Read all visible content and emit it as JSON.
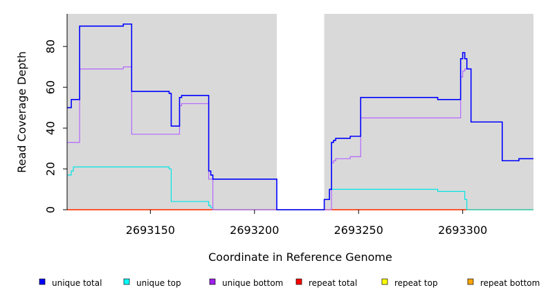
{
  "chart_data": {
    "type": "line",
    "xlabel": "Coordinate in Reference Genome",
    "ylabel": "Read Coverage Depth",
    "xlim": [
      2693110,
      2693334
    ],
    "ylim": [
      0,
      96
    ],
    "x_ticks": [
      {
        "value": 2693150,
        "label": "2693150"
      },
      {
        "value": 2693200,
        "label": "2693200"
      },
      {
        "value": 2693250,
        "label": "2693250"
      },
      {
        "value": 2693300,
        "label": "2693300"
      }
    ],
    "y_ticks": [
      {
        "value": 0,
        "label": "0"
      },
      {
        "value": 20,
        "label": "20"
      },
      {
        "value": 40,
        "label": "40"
      },
      {
        "value": 60,
        "label": "60"
      },
      {
        "value": 80,
        "label": "80"
      }
    ],
    "shaded_regions": [
      {
        "from": 2693110,
        "to": 2693210.7
      },
      {
        "from": 2693233.5,
        "to": 2693334
      }
    ],
    "series": [
      {
        "name": "unique total",
        "color": "#0000ff",
        "points": [
          [
            2693110,
            50
          ],
          [
            2693112,
            50
          ],
          [
            2693112,
            54
          ],
          [
            2693116,
            54
          ],
          [
            2693116,
            90
          ],
          [
            2693137,
            90
          ],
          [
            2693137,
            91
          ],
          [
            2693141,
            91
          ],
          [
            2693141,
            58
          ],
          [
            2693159,
            58
          ],
          [
            2693159,
            57
          ],
          [
            2693160,
            57
          ],
          [
            2693160,
            41
          ],
          [
            2693164,
            41
          ],
          [
            2693164,
            55
          ],
          [
            2693165,
            55
          ],
          [
            2693165,
            56
          ],
          [
            2693178,
            56
          ],
          [
            2693178,
            19
          ],
          [
            2693179,
            19
          ],
          [
            2693179,
            17
          ],
          [
            2693180,
            17
          ],
          [
            2693180,
            15
          ],
          [
            2693210.7,
            15
          ],
          [
            2693210.7,
            0
          ],
          [
            2693233.5,
            0
          ],
          [
            2693233.5,
            5
          ],
          [
            2693236,
            5
          ],
          [
            2693236,
            10
          ],
          [
            2693237,
            10
          ],
          [
            2693237,
            33
          ],
          [
            2693238,
            33
          ],
          [
            2693238,
            34
          ],
          [
            2693239,
            34
          ],
          [
            2693239,
            35
          ],
          [
            2693246,
            35
          ],
          [
            2693246,
            36
          ],
          [
            2693251,
            36
          ],
          [
            2693251,
            55
          ],
          [
            2693288,
            55
          ],
          [
            2693288,
            54
          ],
          [
            2693299,
            54
          ],
          [
            2693299,
            74
          ],
          [
            2693300,
            74
          ],
          [
            2693300,
            77
          ],
          [
            2693301,
            77
          ],
          [
            2693301,
            74
          ],
          [
            2693302,
            74
          ],
          [
            2693302,
            69
          ],
          [
            2693304,
            69
          ],
          [
            2693304,
            43
          ],
          [
            2693319,
            43
          ],
          [
            2693319,
            24
          ],
          [
            2693327,
            24
          ],
          [
            2693327,
            25
          ],
          [
            2693334,
            25
          ]
        ]
      },
      {
        "name": "unique top",
        "color": "#00e5e5",
        "points": [
          [
            2693110,
            17
          ],
          [
            2693112,
            17
          ],
          [
            2693112,
            19
          ],
          [
            2693113,
            19
          ],
          [
            2693113,
            21
          ],
          [
            2693159,
            21
          ],
          [
            2693159,
            20
          ],
          [
            2693160,
            20
          ],
          [
            2693160,
            4
          ],
          [
            2693178,
            4
          ],
          [
            2693178,
            2
          ],
          [
            2693179,
            2
          ],
          [
            2693179,
            1
          ],
          [
            2693180,
            1
          ],
          [
            2693180,
            0
          ],
          [
            2693233.5,
            0
          ],
          [
            2693233.5,
            5
          ],
          [
            2693236,
            5
          ],
          [
            2693236,
            10
          ],
          [
            2693288,
            10
          ],
          [
            2693288,
            9
          ],
          [
            2693301,
            9
          ],
          [
            2693301,
            5
          ],
          [
            2693302,
            5
          ],
          [
            2693302,
            0
          ],
          [
            2693334,
            0
          ]
        ]
      },
      {
        "name": "unique bottom",
        "color": "#b266ff",
        "points": [
          [
            2693110,
            33
          ],
          [
            2693116,
            33
          ],
          [
            2693116,
            69
          ],
          [
            2693137,
            69
          ],
          [
            2693137,
            70
          ],
          [
            2693141,
            70
          ],
          [
            2693141,
            37
          ],
          [
            2693164,
            37
          ],
          [
            2693164,
            51
          ],
          [
            2693165,
            51
          ],
          [
            2693165,
            52
          ],
          [
            2693178,
            52
          ],
          [
            2693178,
            15
          ],
          [
            2693180,
            15
          ],
          [
            2693180,
            0
          ],
          [
            2693237,
            0
          ],
          [
            2693237,
            23
          ],
          [
            2693238,
            23
          ],
          [
            2693238,
            24
          ],
          [
            2693239,
            24
          ],
          [
            2693239,
            25
          ],
          [
            2693246,
            25
          ],
          [
            2693246,
            26
          ],
          [
            2693251,
            26
          ],
          [
            2693251,
            45
          ],
          [
            2693299,
            45
          ],
          [
            2693299,
            65
          ],
          [
            2693300,
            65
          ],
          [
            2693300,
            68
          ],
          [
            2693301,
            68
          ],
          [
            2693301,
            69
          ],
          [
            2693302,
            69
          ]
        ]
      },
      {
        "name": "repeat total",
        "color": "#ff0000",
        "points": [
          [
            2693110,
            0
          ],
          [
            2693334,
            0
          ]
        ]
      },
      {
        "name": "repeat top",
        "color": "#ffff00",
        "points": [
          [
            2693110,
            0
          ],
          [
            2693334,
            0
          ]
        ]
      },
      {
        "name": "repeat bottom",
        "color": "#ffa500",
        "points": [
          [
            2693110,
            0
          ],
          [
            2693334,
            0
          ]
        ]
      }
    ],
    "legend": {
      "placement": "bottom",
      "entries": [
        {
          "label": "unique total",
          "color": "#0000ff"
        },
        {
          "label": "unique top",
          "color": "#00ffff"
        },
        {
          "label": "unique bottom",
          "color": "#a020f0"
        },
        {
          "label": "repeat total",
          "color": "#ff0000"
        },
        {
          "label": "repeat top",
          "color": "#ffff00"
        },
        {
          "label": "repeat bottom",
          "color": "#ffa500"
        }
      ]
    },
    "background_color": "#d9d9d9",
    "grid": false
  }
}
